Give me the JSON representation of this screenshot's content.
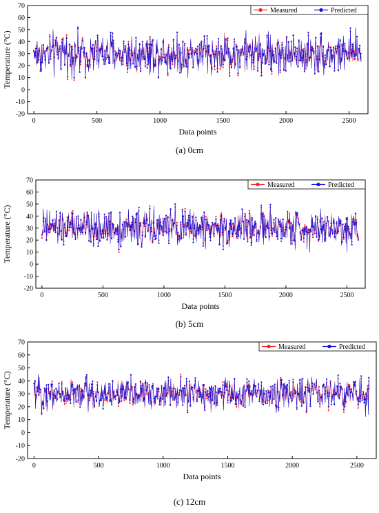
{
  "chart_data": [
    {
      "type": "line",
      "caption": "(a) 0cm",
      "xlabel": "Data points",
      "ylabel": "Temperature (°C)",
      "xlim": [
        -50,
        2650
      ],
      "ylim": [
        -20,
        70
      ],
      "xticks": [
        0,
        500,
        1000,
        1500,
        2000,
        2500
      ],
      "yticks": [
        -20,
        -10,
        0,
        10,
        20,
        30,
        40,
        50,
        60,
        70
      ],
      "n_points": 2600,
      "legend_position": "top-right",
      "series": [
        {
          "name": "Measured",
          "color": "#ff2020",
          "mean": 30,
          "range": [
            8,
            58
          ]
        },
        {
          "name": "Predicted",
          "color": "#1010e0",
          "mean": 30,
          "range": [
            10,
            52
          ]
        }
      ]
    },
    {
      "type": "line",
      "caption": "(b) 5cm",
      "xlabel": "Data points",
      "ylabel": "Temperature (°C)",
      "xlim": [
        -50,
        2650
      ],
      "ylim": [
        -20,
        70
      ],
      "xticks": [
        0,
        500,
        1000,
        1500,
        2000,
        2500
      ],
      "yticks": [
        -20,
        -10,
        0,
        10,
        20,
        30,
        40,
        50,
        60,
        70
      ],
      "n_points": 2600,
      "legend_position": "top-right",
      "series": [
        {
          "name": "Measured",
          "color": "#ff2020",
          "mean": 30,
          "range": [
            10,
            54
          ]
        },
        {
          "name": "Predicted",
          "color": "#1010e0",
          "mean": 30,
          "range": [
            10,
            50
          ]
        }
      ]
    },
    {
      "type": "line",
      "caption": "(c) 12cm",
      "xlabel": "Data points",
      "ylabel": "Temperature (°C)",
      "xlim": [
        -50,
        2650
      ],
      "ylim": [
        -20,
        70
      ],
      "xticks": [
        0,
        500,
        1000,
        1500,
        2000,
        2500
      ],
      "yticks": [
        -20,
        -10,
        0,
        10,
        20,
        30,
        40,
        50,
        60,
        70
      ],
      "n_points": 2600,
      "legend_position": "top-right",
      "series": [
        {
          "name": "Measured",
          "color": "#ff2020",
          "mean": 30,
          "range": [
            12,
            48
          ]
        },
        {
          "name": "Predicted",
          "color": "#1010e0",
          "mean": 30,
          "range": [
            12,
            45
          ]
        }
      ]
    }
  ]
}
